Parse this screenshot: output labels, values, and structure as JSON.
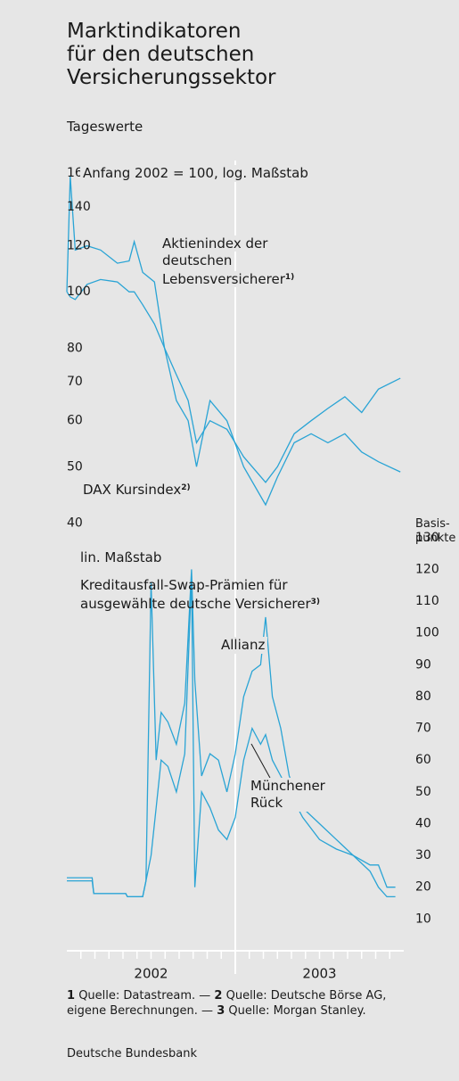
{
  "title_lines": [
    "Marktindikatoren",
    "für den deutschen",
    "Versicherungssektor"
  ],
  "subtitle": "Tageswerte",
  "chart_data": [
    {
      "type": "line",
      "log": true,
      "note": "Anfang 2002 = 100, log. Maßstab",
      "xlim": [
        2002,
        2004
      ],
      "ylim": [
        38,
        170
      ],
      "yticks": [
        40,
        50,
        60,
        70,
        80,
        100,
        120,
        140,
        160
      ],
      "series": [
        {
          "name": "Aktienindex der deutschen Lebensversicherer",
          "note": "1)",
          "color": "#2aa4d5",
          "x": [
            2002.0,
            2002.02,
            2002.05,
            2002.12,
            2002.2,
            2002.3,
            2002.37,
            2002.4,
            2002.45,
            2002.52,
            2002.58,
            2002.65,
            2002.72,
            2002.77,
            2002.85,
            2002.95,
            2003.05,
            2003.18,
            2003.25,
            2003.35,
            2003.45,
            2003.55,
            2003.65,
            2003.75,
            2003.85,
            2003.98
          ],
          "values": [
            100,
            158,
            118,
            120,
            118,
            112,
            113,
            122,
            108,
            104,
            80,
            65,
            60,
            50,
            65,
            60,
            50,
            43,
            48,
            55,
            57,
            55,
            57,
            53,
            51,
            49
          ]
        },
        {
          "name": "DAX Kursindex",
          "note": "2)",
          "color": "#2aa4d5",
          "x": [
            2002.0,
            2002.02,
            2002.05,
            2002.12,
            2002.2,
            2002.3,
            2002.37,
            2002.4,
            2002.45,
            2002.52,
            2002.58,
            2002.65,
            2002.72,
            2002.77,
            2002.85,
            2002.95,
            2003.05,
            2003.18,
            2003.25,
            2003.35,
            2003.45,
            2003.55,
            2003.65,
            2003.75,
            2003.85,
            2003.98
          ],
          "values": [
            100,
            98,
            97,
            103,
            105,
            104,
            100,
            100,
            95,
            88,
            80,
            72,
            65,
            55,
            60,
            58,
            52,
            47,
            50,
            57,
            60,
            63,
            66,
            62,
            68,
            71
          ]
        }
      ]
    },
    {
      "type": "line",
      "note": "lin. Maßstab",
      "title_lines": [
        "Kreditausfall-Swap-Prämien für",
        "ausgewählte deutsche Versicherer"
      ],
      "title_note": "3)",
      "y_label_lines": [
        "Basis-",
        "punkte"
      ],
      "xlim": [
        2002,
        2004
      ],
      "ylim": [
        0,
        135
      ],
      "yticks": [
        10,
        20,
        30,
        40,
        50,
        60,
        70,
        80,
        90,
        100,
        110,
        120,
        130
      ],
      "categories": [
        "2002",
        "2003"
      ],
      "series": [
        {
          "name": "Allianz",
          "color": "#2aa4d5",
          "x": [
            2002.0,
            2002.15,
            2002.16,
            2002.35,
            2002.36,
            2002.45,
            2002.47,
            2002.5,
            2002.53,
            2002.56,
            2002.6,
            2002.65,
            2002.7,
            2002.74,
            2002.76,
            2002.8,
            2002.85,
            2002.9,
            2002.95,
            2003.0,
            2003.05,
            2003.1,
            2003.15,
            2003.18,
            2003.22,
            2003.27,
            2003.32,
            2003.4,
            2003.5,
            2003.6,
            2003.7,
            2003.8,
            2003.85,
            2003.9,
            2003.95
          ],
          "values": [
            23,
            23,
            18,
            18,
            17,
            17,
            22,
            116,
            60,
            75,
            72,
            65,
            78,
            120,
            85,
            55,
            62,
            60,
            50,
            62,
            80,
            88,
            90,
            105,
            80,
            70,
            55,
            45,
            40,
            35,
            30,
            27,
            27,
            20,
            20
          ]
        },
        {
          "name": "Münchener Rück",
          "color": "#2aa4d5",
          "x": [
            2002.0,
            2002.15,
            2002.16,
            2002.35,
            2002.36,
            2002.45,
            2002.47,
            2002.5,
            2002.53,
            2002.56,
            2002.6,
            2002.65,
            2002.7,
            2002.74,
            2002.76,
            2002.8,
            2002.85,
            2002.9,
            2002.95,
            2003.0,
            2003.05,
            2003.1,
            2003.15,
            2003.18,
            2003.22,
            2003.27,
            2003.32,
            2003.4,
            2003.5,
            2003.6,
            2003.7,
            2003.8,
            2003.85,
            2003.9,
            2003.95
          ],
          "values": [
            22,
            22,
            18,
            18,
            17,
            17,
            22,
            30,
            45,
            60,
            58,
            50,
            62,
            118,
            20,
            50,
            45,
            38,
            35,
            42,
            60,
            70,
            65,
            68,
            60,
            55,
            50,
            42,
            35,
            32,
            30,
            25,
            20,
            17,
            17
          ]
        }
      ]
    }
  ],
  "footnotes": [
    {
      "number": "1",
      "text": "Quelle: Datastream. —"
    },
    {
      "number": "2",
      "text": "Quelle: Deutsche Börse AG, eigene Berechnungen. —"
    },
    {
      "number": "3",
      "text": "Quelle: Morgan Stanley."
    }
  ],
  "source": "Deutsche Bundesbank"
}
